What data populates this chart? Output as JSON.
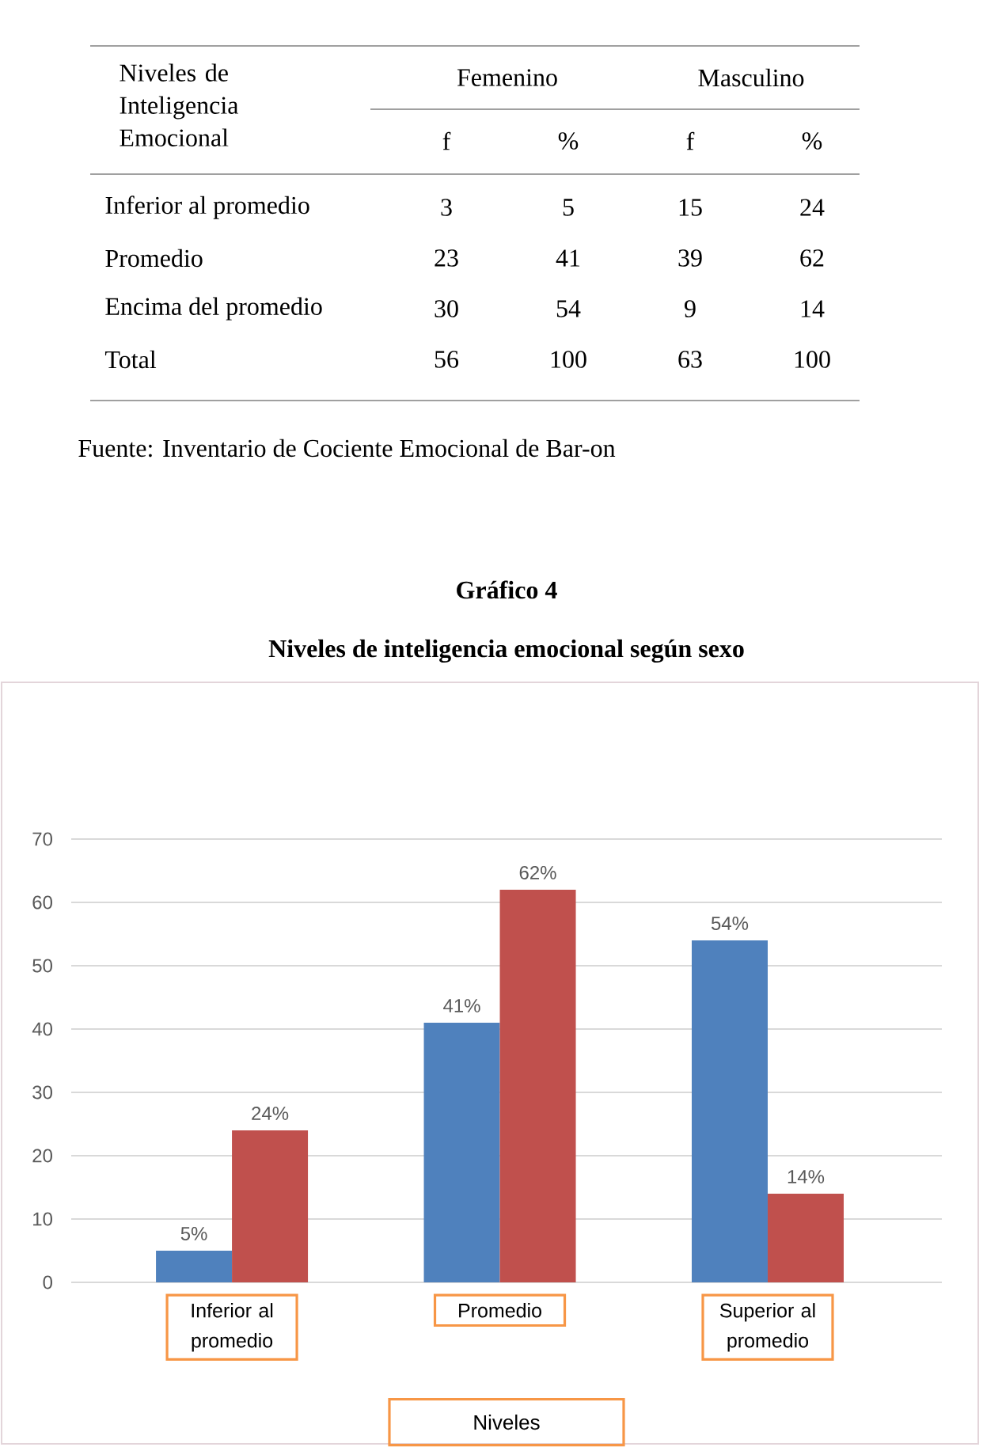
{
  "chart_data": [
    {
      "type": "other",
      "ylabel": "Niveles de Inteligencia Emocional",
      "categories": [
        "Inferior al promedio",
        "Promedio",
        "Encima del promedio",
        "Total"
      ],
      "series": [
        {
          "name": "f",
          "values": [
            3,
            23,
            30,
            56
          ]
        },
        {
          "name": "%",
          "values": [
            5,
            41,
            54,
            100
          ]
        },
        {
          "name": "f",
          "values": [
            15,
            39,
            9,
            63
          ]
        },
        {
          "name": "%",
          "values": [
            24,
            62,
            14,
            100
          ]
        }
      ],
      "data_labels": true,
      "annotations": [
        "Femenino",
        "Masculino",
        "Fuente: Inventario de Cociente Emocional de Bar-on"
      ]
    },
    {
      "type": "bar",
      "title": "Gráfico 4",
      "subtitle": "Niveles de inteligencia emocional según sexo",
      "xlabel": "Niveles",
      "categories": [
        "Inferior al promedio",
        "Promedio",
        "Superior al promedio"
      ],
      "series": [
        {
          "color": "#4f81bd",
          "values": [
            5,
            41,
            54
          ],
          "value_labels": [
            "5%",
            "41%",
            "54%"
          ]
        },
        {
          "color": "#c0504d",
          "values": [
            24,
            62,
            14
          ],
          "value_labels": [
            "24%",
            "62%",
            "14%"
          ]
        }
      ],
      "ylim": [
        0,
        70
      ],
      "yticks": [
        0,
        10,
        20,
        30,
        40,
        50,
        60,
        70
      ],
      "grid": "y"
    }
  ]
}
